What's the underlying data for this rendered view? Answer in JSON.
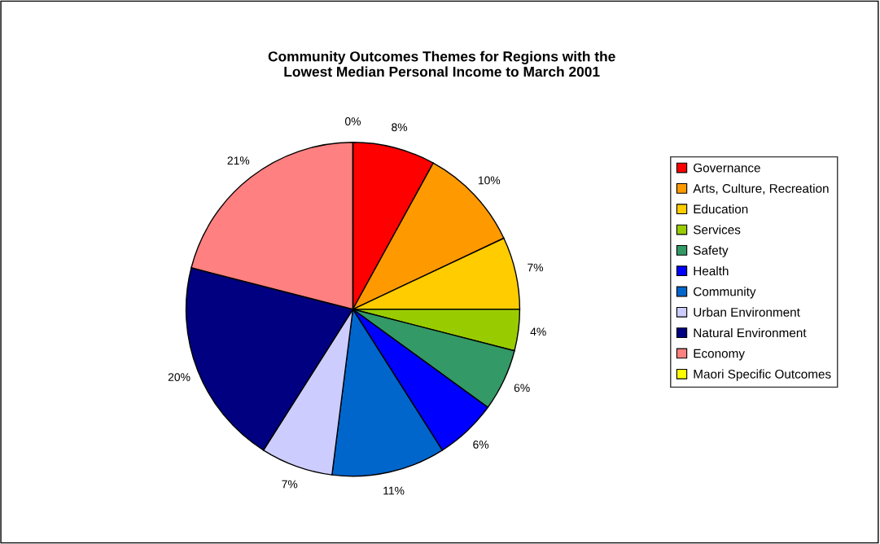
{
  "chart_data": {
    "type": "pie",
    "title": "Community Outcomes Themes for Regions with the\nLowest Median Personal Income to March 2001",
    "categories": [
      "Governance",
      "Arts, Culture, Recreation",
      "Education",
      "Services",
      "Safety",
      "Health",
      "Community",
      "Urban Environment",
      "Natural Environment",
      "Economy",
      "Maori Specific Outcomes"
    ],
    "values": [
      8,
      10,
      7,
      4,
      6,
      6,
      11,
      7,
      20,
      21,
      0
    ],
    "value_labels": [
      "8%",
      "10%",
      "7%",
      "4%",
      "6%",
      "6%",
      "11%",
      "7%",
      "20%",
      "21%",
      "0%"
    ],
    "colors": [
      "#ff0000",
      "#ff9900",
      "#ffcc00",
      "#99cc00",
      "#339966",
      "#0000ff",
      "#0066cc",
      "#ccccff",
      "#000080",
      "#ff8080",
      "#ffff00"
    ],
    "legend": "right"
  }
}
